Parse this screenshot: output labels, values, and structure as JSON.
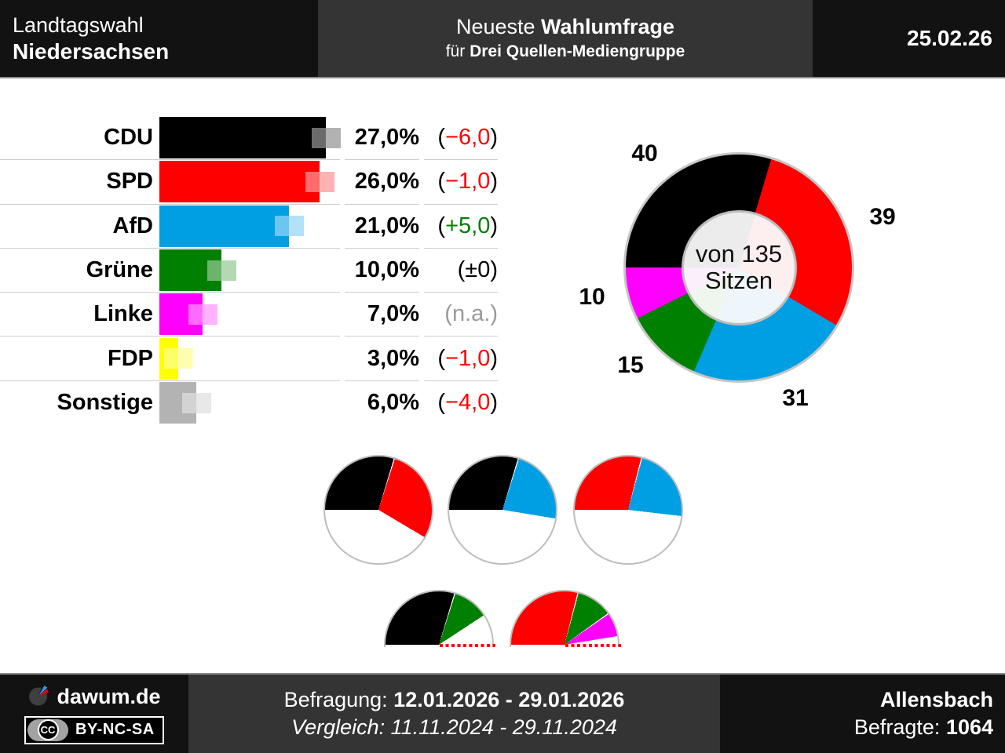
{
  "header": {
    "left_line1": "Landtagswahl",
    "left_line2": "Niedersachsen",
    "center_line1_normal": "Neueste ",
    "center_line1_bold": "Wahlumfrage",
    "center_line2_normal": "für ",
    "center_line2_bold": "Drei Quellen-Mediengruppe",
    "date": "25.02.26"
  },
  "poll": {
    "parties": [
      {
        "name": "CDU",
        "value": "27,0%",
        "pct": 27,
        "change": "−6,0",
        "change_type": "negative",
        "color": "#000000"
      },
      {
        "name": "SPD",
        "value": "26,0%",
        "pct": 26,
        "change": "−1,0",
        "change_type": "negative",
        "color": "#fe0000"
      },
      {
        "name": "AfD",
        "value": "21,0%",
        "pct": 21,
        "change": "+5,0",
        "change_type": "positive",
        "color": "#009fe3"
      },
      {
        "name": "Grüne",
        "value": "10,0%",
        "pct": 10,
        "change": "±0",
        "change_type": "neutral",
        "color": "#008000"
      },
      {
        "name": "Linke",
        "value": "7,0%",
        "pct": 7,
        "change": "n.a.",
        "change_type": "na",
        "color": "#ff00ff"
      },
      {
        "name": "FDP",
        "value": "3,0%",
        "pct": 3,
        "change": "−1,0",
        "change_type": "negative",
        "color": "#ffff00"
      },
      {
        "name": "Sonstige",
        "value": "6,0%",
        "pct": 6,
        "change": "−4,0",
        "change_type": "negative",
        "color": "#b3b3b3"
      }
    ]
  },
  "seats": {
    "total": 135,
    "center_line1": "von 135",
    "center_line2": "Sitzen",
    "segments": [
      {
        "party": "CDU",
        "seats": 40,
        "color": "#000000",
        "tint": "#ececec"
      },
      {
        "party": "SPD",
        "seats": 39,
        "color": "#fe0000",
        "tint": "#fdeff0"
      },
      {
        "party": "AfD",
        "seats": 31,
        "color": "#009fe3",
        "tint": "#eef6fb"
      },
      {
        "party": "Grüne",
        "seats": 15,
        "color": "#008000",
        "tint": "#eef6ee"
      },
      {
        "party": "Linke",
        "seats": 10,
        "color": "#ff00ff",
        "tint": "#fceffc"
      }
    ]
  },
  "coalitions": {
    "full": [
      {
        "name": "CDU+SPD",
        "parts": [
          {
            "party": "CDU",
            "seats": 40,
            "color": "#000000"
          },
          {
            "party": "SPD",
            "seats": 39,
            "color": "#fe0000"
          }
        ]
      },
      {
        "name": "CDU+AfD",
        "parts": [
          {
            "party": "CDU",
            "seats": 40,
            "color": "#000000"
          },
          {
            "party": "AfD",
            "seats": 31,
            "color": "#009fe3"
          }
        ]
      },
      {
        "name": "SPD+AfD",
        "parts": [
          {
            "party": "SPD",
            "seats": 39,
            "color": "#fe0000"
          },
          {
            "party": "AfD",
            "seats": 31,
            "color": "#009fe3"
          }
        ]
      }
    ],
    "half": [
      {
        "name": "CDU+Grüne",
        "parts": [
          {
            "party": "CDU",
            "seats": 40,
            "color": "#000000"
          },
          {
            "party": "Grüne",
            "seats": 15,
            "color": "#008000"
          }
        ]
      },
      {
        "name": "SPD+Grüne+Linke",
        "parts": [
          {
            "party": "SPD",
            "seats": 39,
            "color": "#fe0000"
          },
          {
            "party": "Grüne",
            "seats": 15,
            "color": "#008000"
          },
          {
            "party": "Linke",
            "seats": 10,
            "color": "#ff00ff"
          }
        ]
      }
    ]
  },
  "footer": {
    "brand": "dawum.de",
    "cc": "CC",
    "license": "BY-NC-SA",
    "line1_label": "Befragung: ",
    "line1_value": "12.01.2026 - 29.01.2026",
    "line2_label": "Vergleich: ",
    "line2_value": "11.11.2024 - 29.11.2024",
    "institute": "Allensbach",
    "respondents_label": "Befragte: ",
    "respondents_value": "1064"
  },
  "chart_data": [
    {
      "type": "bar",
      "title": "Neueste Wahlumfrage Landtagswahl Niedersachsen, 25.02.26",
      "orientation": "horizontal",
      "categories": [
        "CDU",
        "SPD",
        "AfD",
        "Grüne",
        "Linke",
        "FDP",
        "Sonstige"
      ],
      "values": [
        27.0,
        26.0,
        21.0,
        10.0,
        7.0,
        3.0,
        6.0
      ],
      "unit": "%",
      "changes": [
        "−6,0",
        "−1,0",
        "+5,0",
        "±0",
        "n.a.",
        "−1,0",
        "−4,0"
      ],
      "colors": [
        "#000000",
        "#fe0000",
        "#009fe3",
        "#008000",
        "#ff00ff",
        "#ffff00",
        "#b3b3b3"
      ],
      "xlim": [
        0,
        30
      ],
      "grid": false,
      "legend": false
    },
    {
      "type": "pie",
      "subtype": "donut",
      "title": "Sitzverteilung von 135 Sitzen",
      "labels": [
        "CDU",
        "SPD",
        "AfD",
        "Grüne",
        "Linke"
      ],
      "values": [
        40,
        39,
        31,
        15,
        10
      ],
      "total": 135,
      "colors": [
        "#000000",
        "#fe0000",
        "#009fe3",
        "#008000",
        "#ff00ff"
      ],
      "start_angle_deg_from_top_cw": 270
    },
    {
      "type": "pie",
      "subtype": "coalition-pies",
      "title": "Koalitionsoptionen (Mehrheit bei 68 von 135 Sitzen)",
      "series": [
        {
          "name": "CDU+SPD",
          "values": [
            40,
            39
          ],
          "total": 135,
          "majority": true
        },
        {
          "name": "CDU+AfD",
          "values": [
            40,
            31
          ],
          "total": 135,
          "majority": true
        },
        {
          "name": "SPD+AfD",
          "values": [
            39,
            31
          ],
          "total": 135,
          "majority": true
        },
        {
          "name": "CDU+Grüne",
          "values": [
            40,
            15
          ],
          "total": 135,
          "majority": false
        },
        {
          "name": "SPD+Grüne+Linke",
          "values": [
            39,
            15,
            10
          ],
          "total": 135,
          "majority": false
        }
      ]
    }
  ]
}
